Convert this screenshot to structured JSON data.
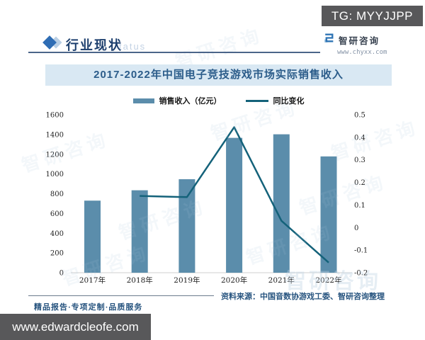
{
  "overlay": {
    "tg_badge": "TG: MYYJJPP",
    "website_badge": "www.edwardcleofe.com"
  },
  "header": {
    "section_title": "行业现状",
    "watermark_text": "tatus",
    "brand": {
      "name": "智研咨询",
      "url": "www.chyxx.com"
    }
  },
  "chart_data": {
    "type": "bar+line",
    "title": "2017-2022年中国电子竞技游戏市场实际销售收入",
    "categories": [
      "2017年",
      "2018年",
      "2019年",
      "2020年",
      "2021年",
      "2022年"
    ],
    "series": [
      {
        "name": "销售收入（亿元）",
        "render": "bar",
        "axis": "left",
        "values": [
          730,
          835,
          947,
          1366,
          1402,
          1178
        ],
        "color": "#5b8dab"
      },
      {
        "name": "同比变化",
        "render": "line",
        "axis": "right",
        "values": [
          null,
          0.14,
          0.135,
          0.445,
          0.03,
          -0.155
        ],
        "color": "#14627a"
      }
    ],
    "left_axis": {
      "min": 0,
      "max": 1600,
      "ticks": [
        "0",
        "200",
        "400",
        "600",
        "800",
        "1000",
        "1200",
        "1400",
        "1600"
      ]
    },
    "right_axis": {
      "min": -0.2,
      "max": 0.5,
      "ticks": [
        "-0.2",
        "-0.1",
        "0",
        "0.1",
        "0.2",
        "0.3",
        "0.4",
        "0.5"
      ]
    },
    "legend_position": "top-center",
    "grid": false,
    "axis_line_color": "#cfcfcf"
  },
  "footer": {
    "source": "资料来源：中国音数协游戏工委、智研咨询整理",
    "tagline": "精品报告·专项定制·品质服务"
  },
  "watermark": {
    "brand_text": "智研咨询"
  }
}
